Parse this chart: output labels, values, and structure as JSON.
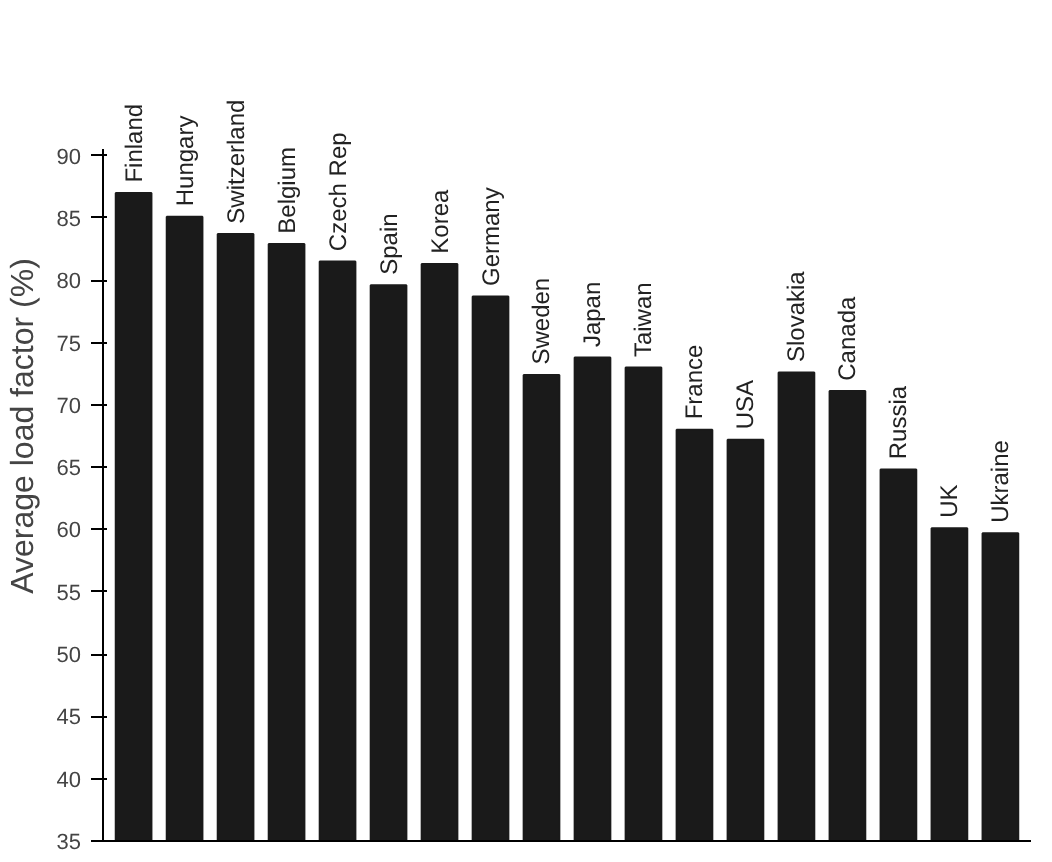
{
  "chart_data": {
    "type": "bar",
    "ylabel": "Average load factor (%)",
    "categories": [
      "Finland",
      "Hungary",
      "Switzerland",
      "Belgium",
      "Czech Rep",
      "Spain",
      "Korea",
      "Germany",
      "Sweden",
      "Japan",
      "Taiwan",
      "France",
      "USA",
      "Slovakia",
      "Canada",
      "Russia",
      "UK",
      "Ukraine"
    ],
    "values": [
      87.0,
      85.1,
      83.7,
      82.9,
      81.5,
      79.6,
      81.3,
      78.7,
      72.4,
      73.8,
      73.0,
      68.0,
      67.2,
      72.6,
      71.1,
      64.8,
      60.1,
      59.7
    ],
    "color": "#1a1a1a",
    "ylim": [
      35,
      90.5
    ],
    "yticks": [
      35,
      40,
      45,
      50,
      55,
      60,
      65,
      70,
      75,
      80,
      85,
      90
    ],
    "grid": false
  }
}
